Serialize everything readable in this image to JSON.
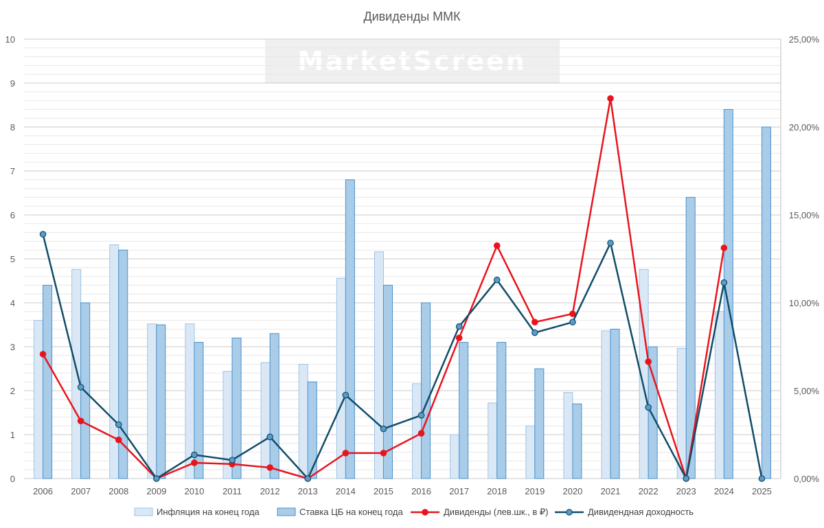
{
  "chart_data": {
    "type": "bar+line",
    "title": "Дивиденды ММК",
    "watermark": "MarketScreen",
    "categories": [
      "2006",
      "2007",
      "2008",
      "2009",
      "2010",
      "2011",
      "2012",
      "2013",
      "2014",
      "2015",
      "2016",
      "2017",
      "2018",
      "2019",
      "2020",
      "2021",
      "2022",
      "2023",
      "2024",
      "2025"
    ],
    "y_left": {
      "min": 0,
      "max": 10,
      "ticks": [
        "0",
        "1",
        "2",
        "3",
        "4",
        "5",
        "6",
        "7",
        "8",
        "9",
        "10"
      ]
    },
    "y_right": {
      "min": 0,
      "max": 25,
      "ticks": [
        "0,00%",
        "5,00%",
        "10,00%",
        "15,00%",
        "20,00%",
        "25,00%"
      ]
    },
    "grid": true,
    "legend_position": "bottom",
    "series": [
      {
        "name": "Инфляция на конец года",
        "kind": "bar",
        "axis": "right",
        "unit": "%",
        "values": [
          9.0,
          11.9,
          13.3,
          8.8,
          8.8,
          6.1,
          6.6,
          6.5,
          11.4,
          12.9,
          5.4,
          2.5,
          4.3,
          3.0,
          4.9,
          8.4,
          11.9,
          7.4,
          9.5,
          null
        ],
        "fill": "#dae8f5",
        "stroke": "#9dc3e6"
      },
      {
        "name": "Ставка ЦБ на конец года",
        "kind": "bar",
        "axis": "right",
        "unit": "%",
        "values": [
          11.0,
          10.0,
          13.0,
          8.75,
          7.75,
          8.0,
          8.25,
          5.5,
          17.0,
          11.0,
          10.0,
          7.75,
          7.75,
          6.25,
          4.25,
          8.5,
          7.5,
          16.0,
          21.0,
          20.0
        ],
        "fill": "#a9cce9",
        "stroke": "#4a90c8"
      },
      {
        "name": "Дивиденды (лев.шк., в ₽)",
        "kind": "line",
        "axis": "left",
        "values": [
          2.83,
          1.31,
          0.88,
          0.0,
          0.36,
          0.33,
          0.25,
          0.0,
          0.58,
          0.58,
          1.03,
          3.2,
          5.3,
          3.56,
          3.75,
          8.65,
          2.66,
          0.0,
          5.25,
          null
        ],
        "color": "#e8141c",
        "marker_fill": "#e8141c"
      },
      {
        "name": "Дивидендная доходность",
        "kind": "line",
        "axis": "right",
        "unit": "%",
        "values": [
          13.9,
          5.2,
          3.07,
          0.0,
          1.35,
          1.05,
          2.37,
          0.0,
          4.75,
          2.83,
          3.6,
          8.65,
          11.3,
          8.3,
          8.9,
          13.4,
          4.05,
          0.0,
          11.15,
          0.0
        ],
        "color": "#0f4c68",
        "marker_fill": "#5a9cc8"
      }
    ]
  }
}
